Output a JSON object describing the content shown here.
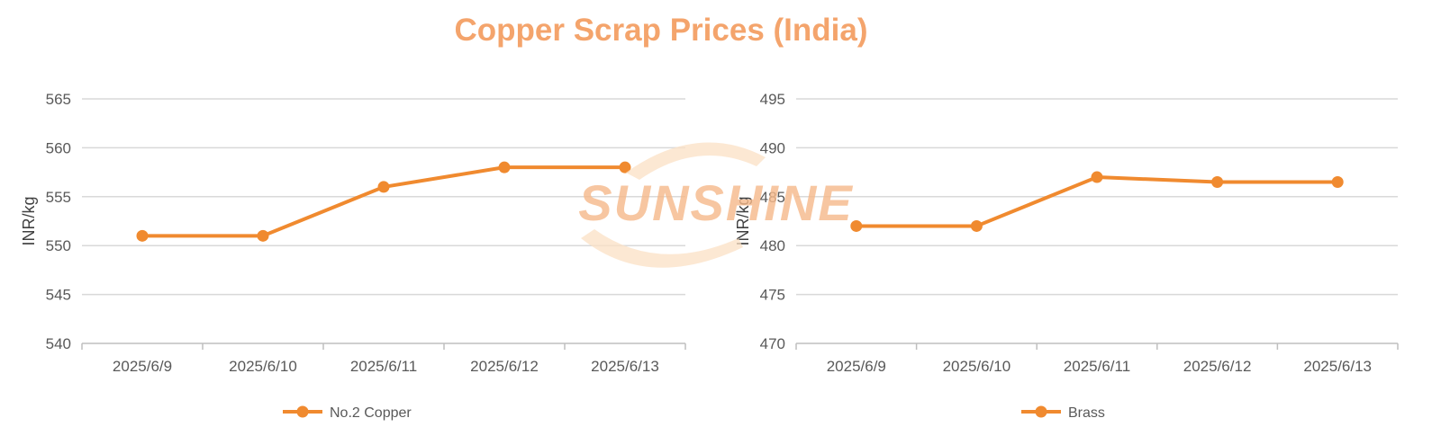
{
  "title": "Copper Scrap Prices (India)",
  "watermark_text": "SUNSHINE",
  "colors": {
    "series": "#f08a2f",
    "title": "#f4a46c",
    "grid": "#d9d9d9",
    "watermark": "#f6b98a"
  },
  "chart_data": [
    {
      "type": "line",
      "categories": [
        "2025/6/9",
        "2025/6/10",
        "2025/6/11",
        "2025/6/12",
        "2025/6/13"
      ],
      "series": [
        {
          "name": "No.2 Copper",
          "values": [
            551,
            551,
            556,
            558,
            558
          ]
        }
      ],
      "ylabel": "INR/kg",
      "ylim": [
        540,
        565
      ],
      "yticks": [
        "540",
        "545",
        "550",
        "555",
        "560",
        "565"
      ],
      "grid": true,
      "legend_position": "bottom"
    },
    {
      "type": "line",
      "categories": [
        "2025/6/9",
        "2025/6/10",
        "2025/6/11",
        "2025/6/12",
        "2025/6/13"
      ],
      "series": [
        {
          "name": "Brass",
          "values": [
            482,
            482,
            487,
            486.5,
            486.5
          ]
        }
      ],
      "ylabel": "INR/kg",
      "ylim": [
        470,
        495
      ],
      "yticks": [
        "470",
        "475",
        "480",
        "485",
        "490",
        "495"
      ],
      "grid": true,
      "legend_position": "bottom"
    }
  ]
}
